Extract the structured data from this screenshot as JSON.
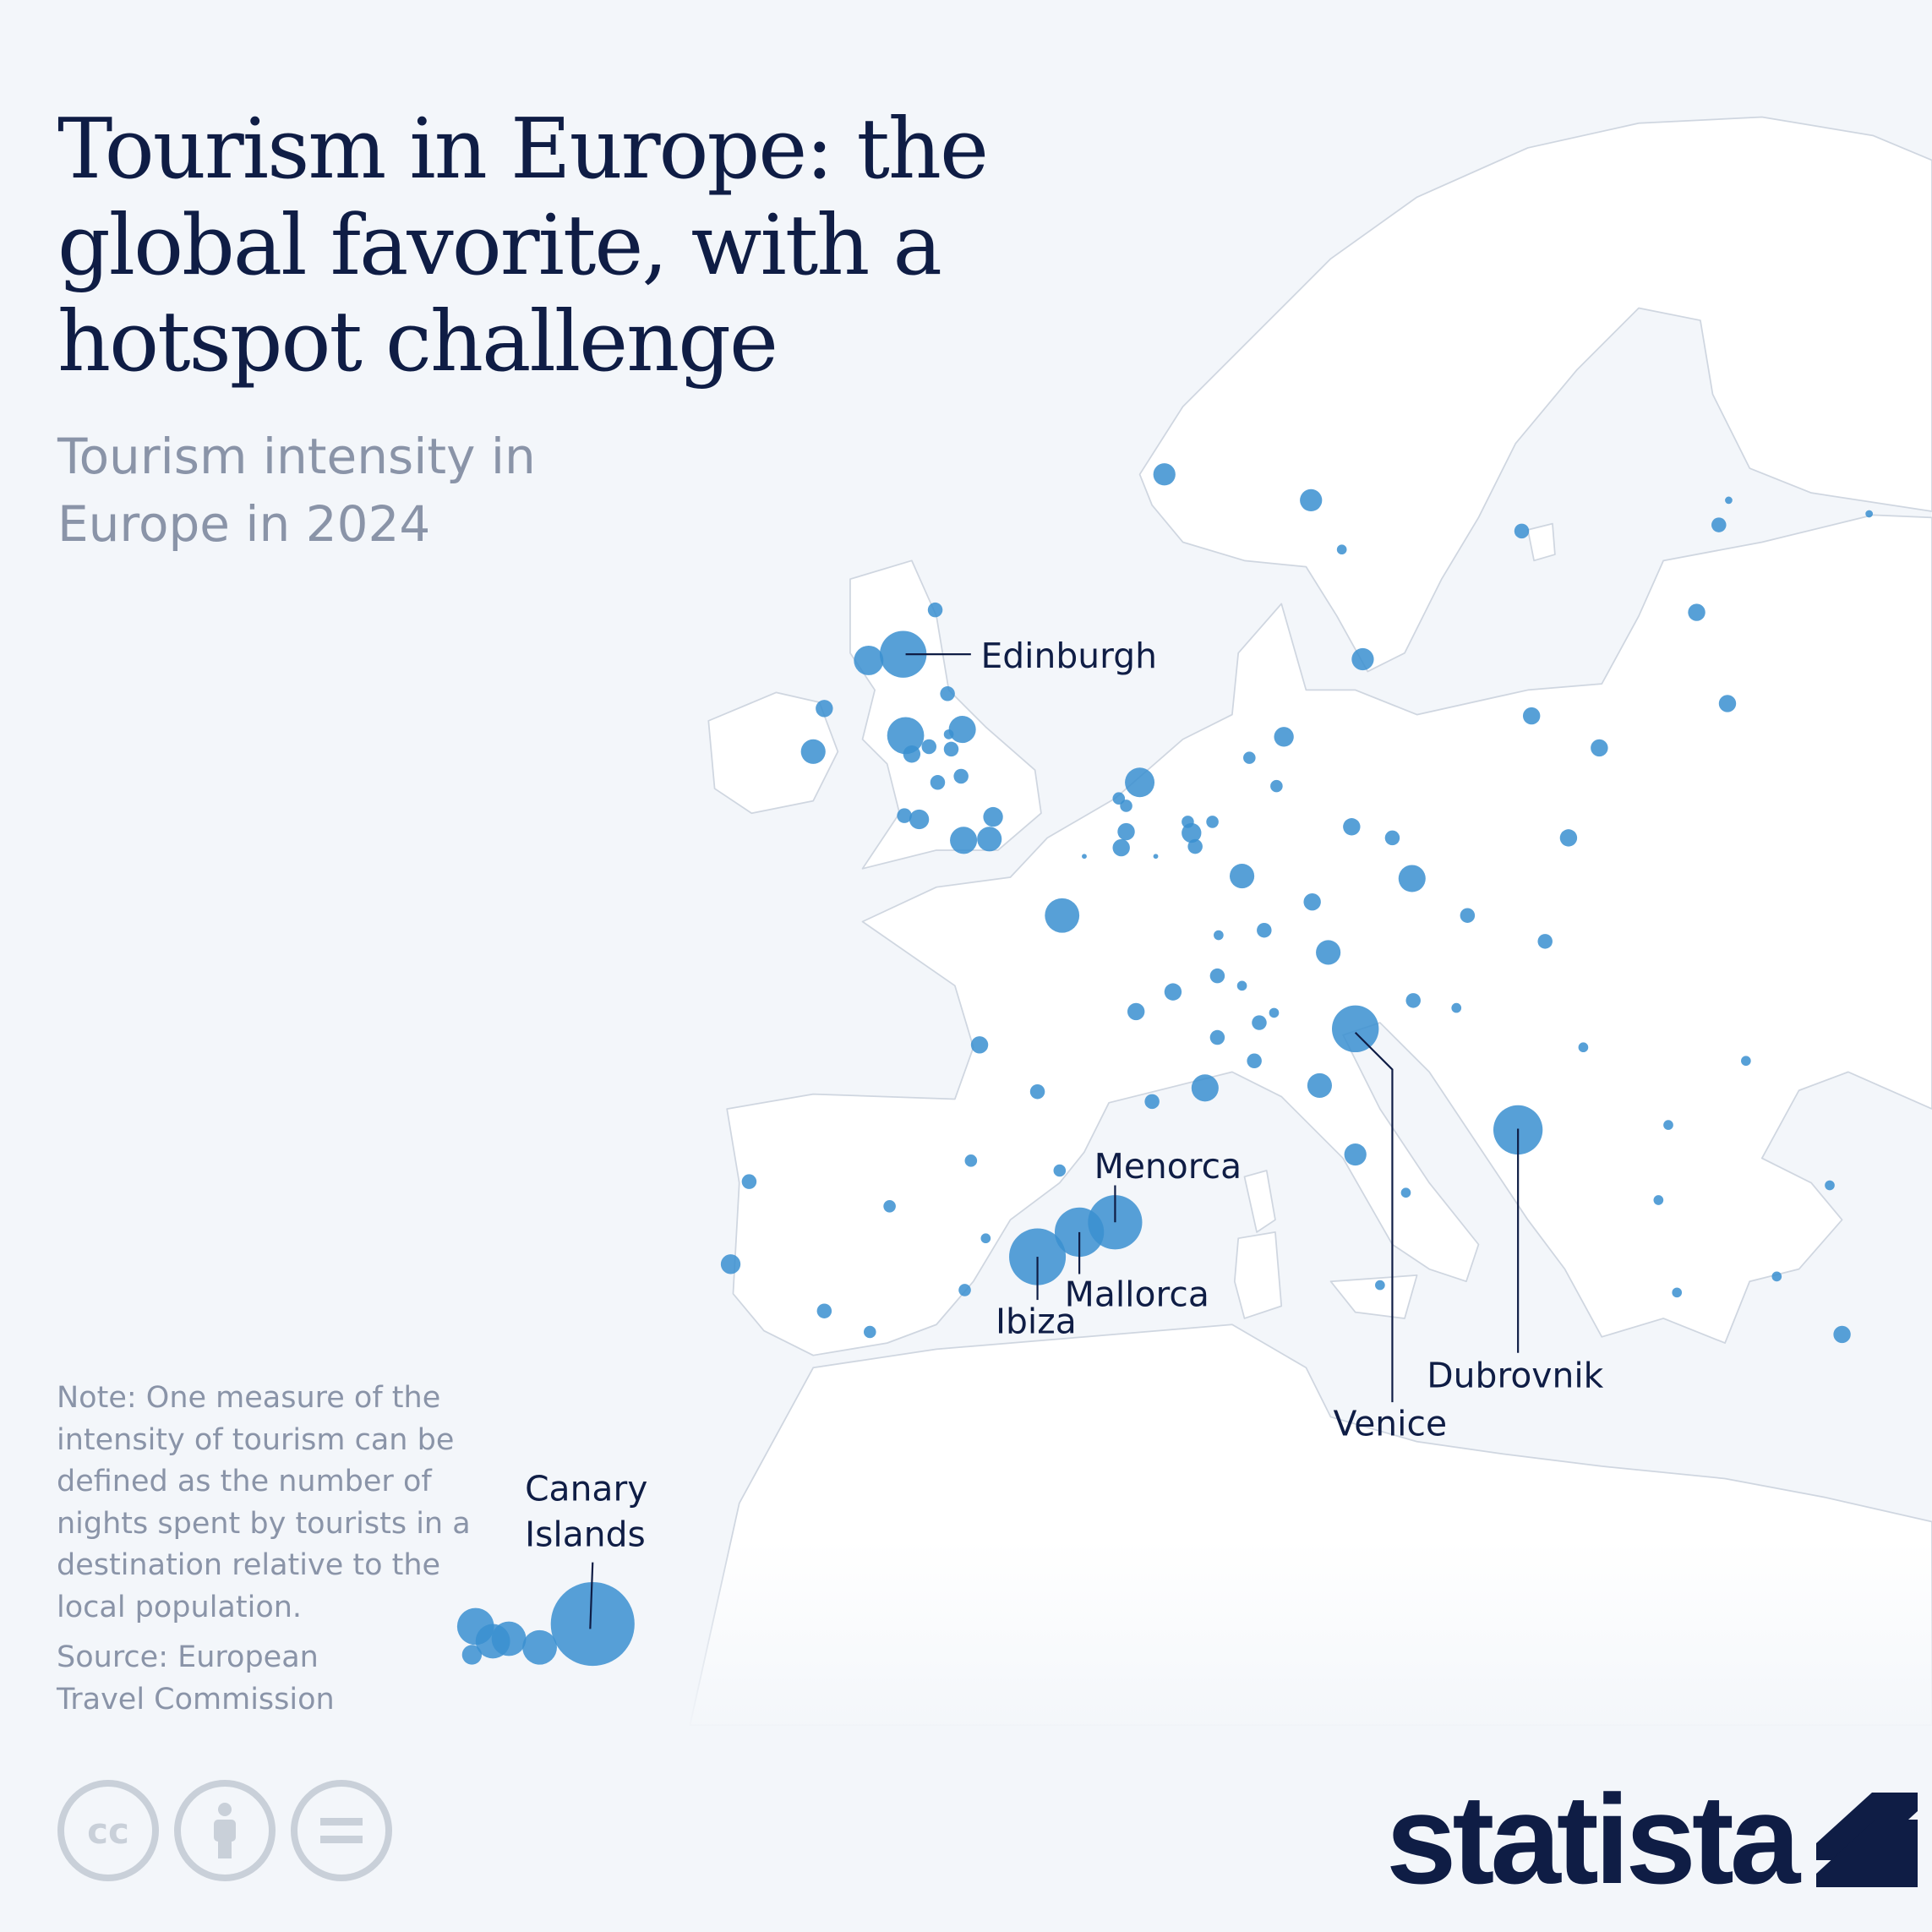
{
  "header": {
    "title": "Tourism in Europe: the global favorite, with a hotspot challenge",
    "subtitle": "Tourism intensity in Europe in 2024"
  },
  "map": {
    "bubble_color": "#3a8fd0",
    "land_color": "#ffffff",
    "sea_color": "#f3f6fa",
    "labels": {
      "edinburgh": "Edinburgh",
      "menorca": "Menorca",
      "mallorca": "Mallorca",
      "ibiza": "Ibiza",
      "venice": "Venice",
      "dubrovnik": "Dubrovnik",
      "canary_line1": "Canary",
      "canary_line2": "Islands"
    }
  },
  "footer": {
    "note": "Note: One measure of the intensity of tourism can be defined as the number of nights spent by tourists in a destination relative to the local population.",
    "source": "Source: European Travel Commission",
    "license_icons": [
      "cc-icon",
      "attribution-icon",
      "no-derivatives-icon"
    ],
    "brand": "statista"
  }
}
